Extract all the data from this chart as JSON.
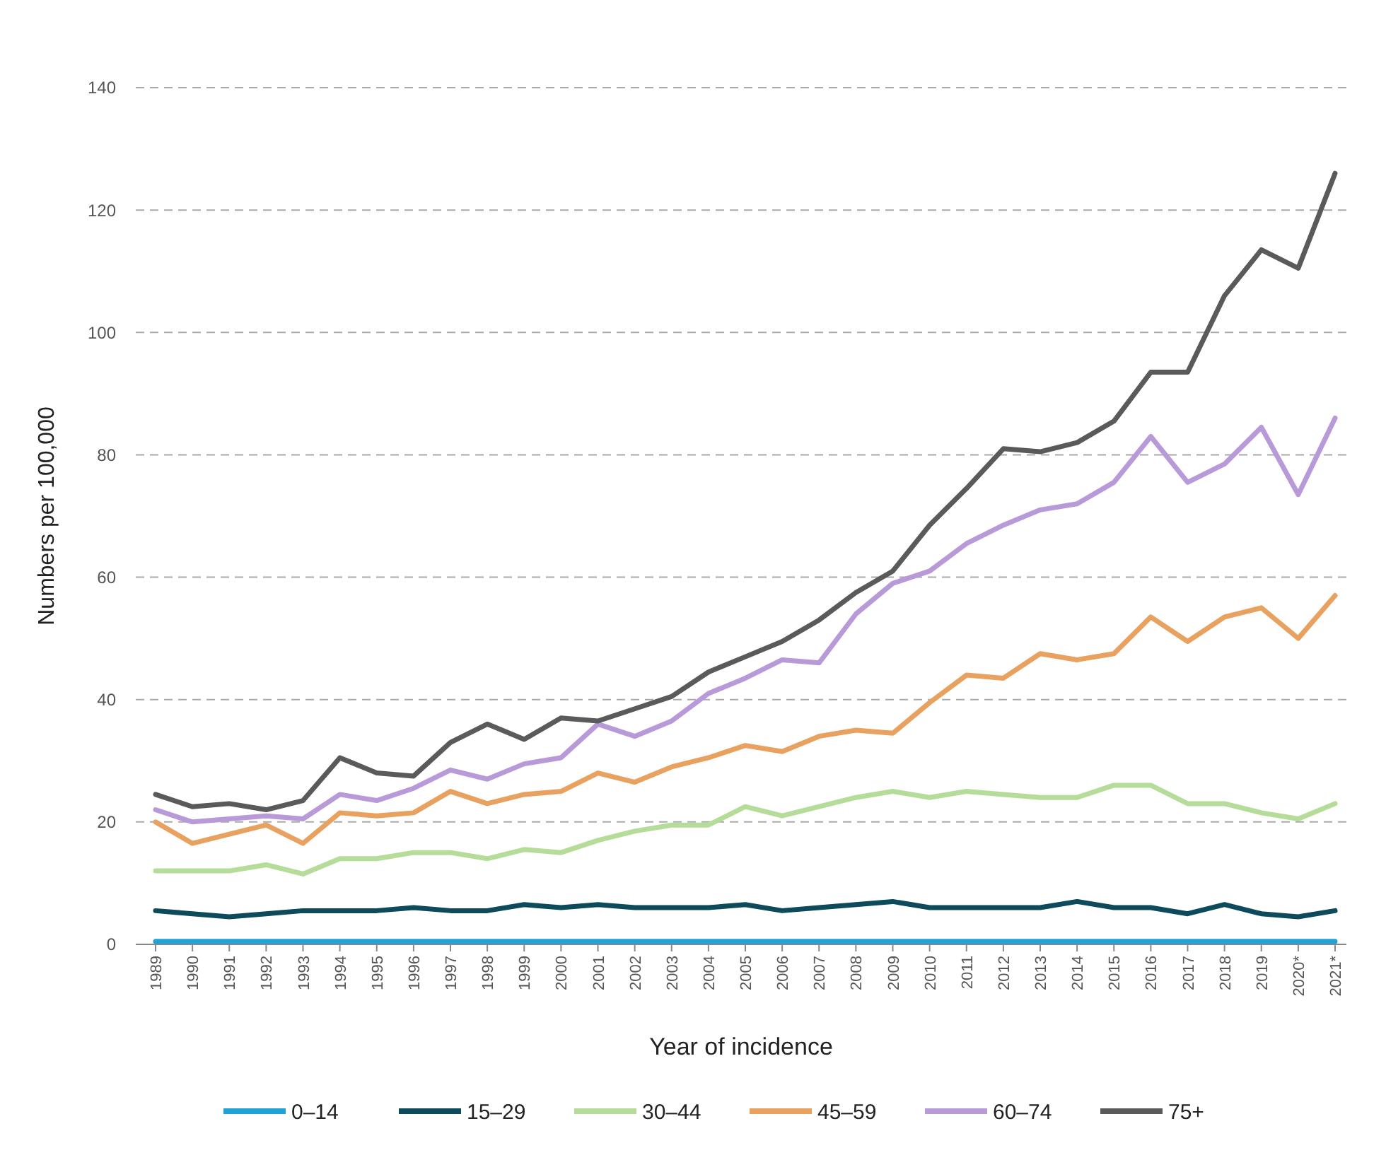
{
  "chart_data": {
    "type": "line",
    "xlabel": "Year of incidence",
    "ylabel": "Numbers per 100,000",
    "categories": [
      "1989",
      "1990",
      "1991",
      "1992",
      "1993",
      "1994",
      "1995",
      "1996",
      "1997",
      "1998",
      "1999",
      "2000",
      "2001",
      "2002",
      "2003",
      "2004",
      "2005",
      "2006",
      "2007",
      "2008",
      "2009",
      "2010",
      "2011",
      "2012",
      "2013",
      "2014",
      "2015",
      "2016",
      "2017",
      "2018",
      "2019",
      "2020*",
      "2021*"
    ],
    "ylim": [
      0,
      140
    ],
    "yticks": [
      0,
      20,
      40,
      60,
      80,
      100,
      120,
      140
    ],
    "grid": "y",
    "legend": "bottom",
    "marker": "none",
    "line_style": "solid",
    "series": [
      {
        "name": "0–14",
        "color": "#1fa3d6",
        "values": [
          0.5,
          0.5,
          0.5,
          0.5,
          0.5,
          0.5,
          0.5,
          0.5,
          0.5,
          0.5,
          0.5,
          0.5,
          0.5,
          0.5,
          0.5,
          0.5,
          0.5,
          0.5,
          0.5,
          0.5,
          0.5,
          0.5,
          0.5,
          0.5,
          0.5,
          0.5,
          0.5,
          0.5,
          0.5,
          0.5,
          0.5,
          0.5,
          0.5
        ]
      },
      {
        "name": "15–29",
        "color": "#0c4a5c",
        "values": [
          5.5,
          5,
          4.5,
          5,
          5.5,
          5.5,
          5.5,
          6,
          5.5,
          5.5,
          6.5,
          6,
          6.5,
          6,
          6,
          6,
          6.5,
          5.5,
          6,
          6.5,
          7,
          6,
          6,
          6,
          6,
          7,
          6,
          6,
          5,
          6.5,
          5,
          4.5,
          5.5
        ]
      },
      {
        "name": "30–44",
        "color": "#b6dc9a",
        "values": [
          12,
          12,
          12,
          13,
          11.5,
          14,
          14,
          15,
          15,
          14,
          15.5,
          15,
          17,
          18.5,
          19.5,
          19.5,
          22.5,
          21,
          22.5,
          24,
          25,
          24,
          25,
          24.5,
          24,
          24,
          26,
          26,
          23,
          23,
          21.5,
          20.5,
          23
        ]
      },
      {
        "name": "45–59",
        "color": "#e8a15f",
        "values": [
          20,
          16.5,
          18,
          19.5,
          16.5,
          21.5,
          21,
          21.5,
          25,
          23,
          24.5,
          25,
          28,
          26.5,
          29,
          30.5,
          32.5,
          31.5,
          34,
          35,
          34.5,
          39.5,
          44,
          43.5,
          47.5,
          46.5,
          47.5,
          53.5,
          49.5,
          53.5,
          55,
          50,
          57
        ]
      },
      {
        "name": "60–74",
        "color": "#b99ad8",
        "values": [
          22,
          20,
          20.5,
          21,
          20.5,
          24.5,
          23.5,
          25.5,
          28.5,
          27,
          29.5,
          30.5,
          36,
          34,
          36.5,
          41,
          43.5,
          46.5,
          46,
          54,
          59,
          61,
          65.5,
          68.5,
          71,
          72,
          75.5,
          83,
          75.5,
          78.5,
          84.5,
          73.5,
          86
        ]
      },
      {
        "name": "75+",
        "color": "#5a5a5a",
        "values": [
          24.5,
          22.5,
          23,
          22,
          23.5,
          30.5,
          28,
          27.5,
          33,
          36,
          33.5,
          37,
          36.5,
          38.5,
          40.5,
          44.5,
          47,
          49.5,
          53,
          57.5,
          61,
          68.5,
          74.5,
          81,
          80.5,
          82,
          85.5,
          93.5,
          93.5,
          106,
          113.5,
          110.5,
          126
        ]
      }
    ]
  }
}
